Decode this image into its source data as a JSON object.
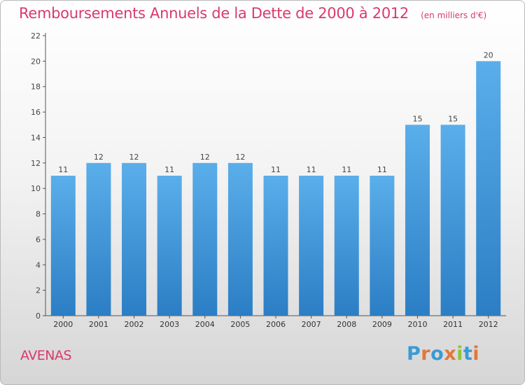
{
  "chart_data": {
    "type": "bar",
    "title": "Remboursements Annuels de la Dette de 2000 à 2012",
    "unit_label": "(en milliers d'€)",
    "categories": [
      "2000",
      "2001",
      "2002",
      "2003",
      "2004",
      "2005",
      "2006",
      "2007",
      "2008",
      "2009",
      "2010",
      "2011",
      "2012"
    ],
    "values": [
      11,
      12,
      12,
      11,
      12,
      12,
      11,
      11,
      11,
      11,
      15,
      15,
      20
    ],
    "ylim": [
      0,
      22
    ],
    "yticks": [
      0,
      2,
      4,
      6,
      8,
      10,
      12,
      14,
      16,
      18,
      20,
      22
    ],
    "grid": false,
    "bar_color_top": "#5aaeea",
    "bar_color_bottom": "#2b7ec4",
    "label_color": "#444444"
  },
  "footer": {
    "location": "AVENAS"
  },
  "logo": {
    "text": "Proxiti",
    "letters": [
      "P",
      "r",
      "o",
      "x",
      "i",
      "t",
      "i"
    ],
    "colors": [
      "#3a9bd5",
      "#e2773a",
      "#3a9bd5",
      "#e2773a",
      "#8cc63f",
      "#3a9bd5",
      "#e2773a"
    ]
  }
}
